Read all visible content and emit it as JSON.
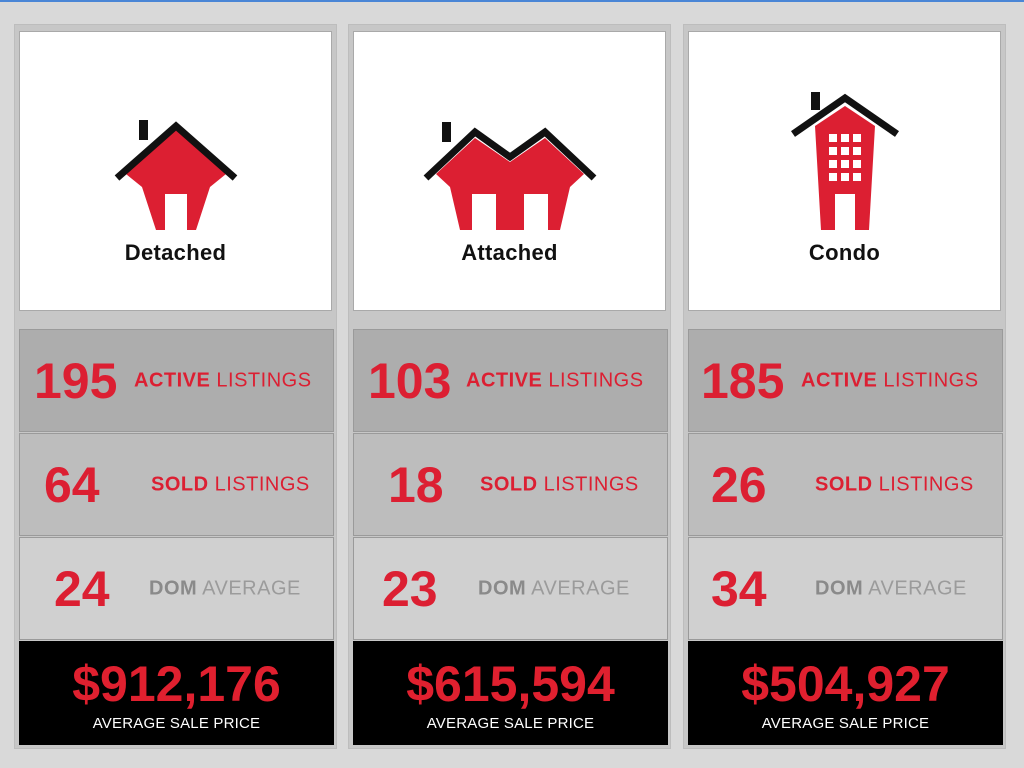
{
  "colors": {
    "accent_red": "#dc1f32",
    "price_bg": "#000000",
    "muted_gray": "#8a8a8a"
  },
  "columns": [
    {
      "type": "Detached",
      "icon": "detached-house-icon",
      "active": {
        "value": "195",
        "bold": "ACTIVE",
        "rest": " LISTINGS"
      },
      "sold": {
        "value": "64",
        "bold": "SOLD",
        "rest": " LISTINGS"
      },
      "dom": {
        "value": "24",
        "bold": "DOM",
        "rest": " AVERAGE"
      },
      "price": {
        "value": "$912,176",
        "label": "AVERAGE SALE PRICE"
      }
    },
    {
      "type": "Attached",
      "icon": "attached-house-icon",
      "active": {
        "value": "103",
        "bold": "ACTIVE",
        "rest": " LISTINGS"
      },
      "sold": {
        "value": "18",
        "bold": "SOLD",
        "rest": " LISTINGS"
      },
      "dom": {
        "value": "23",
        "bold": "DOM",
        "rest": " AVERAGE"
      },
      "price": {
        "value": "$615,594",
        "label": "AVERAGE SALE PRICE"
      }
    },
    {
      "type": "Condo",
      "icon": "condo-building-icon",
      "active": {
        "value": "185",
        "bold": "ACTIVE",
        "rest": " LISTINGS"
      },
      "sold": {
        "value": "26",
        "bold": "SOLD",
        "rest": " LISTINGS"
      },
      "dom": {
        "value": "34",
        "bold": "DOM",
        "rest": " AVERAGE"
      },
      "price": {
        "value": "$504,927",
        "label": "AVERAGE SALE PRICE"
      }
    }
  ]
}
